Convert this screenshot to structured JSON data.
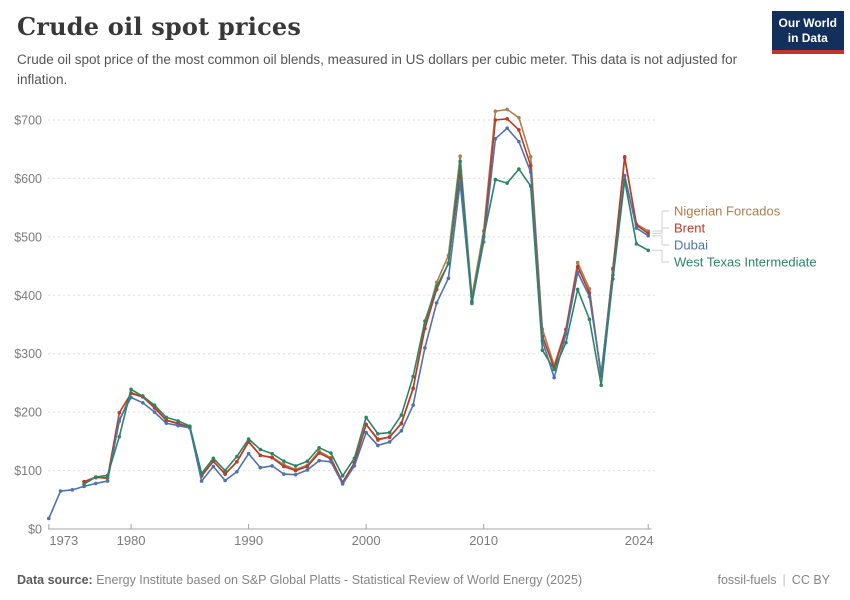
{
  "header": {
    "title": "Crude oil spot prices",
    "subtitle": "Crude oil spot price of the most common oil blends, measured in US dollars per cubic meter. This data is not adjusted for inflation.",
    "logo": {
      "line1": "Our World",
      "line2": "in Data"
    }
  },
  "chart_data": {
    "type": "line",
    "title": "Crude oil spot prices",
    "ylabel": "US dollars per cubic meter",
    "x_range": [
      1973,
      2024
    ],
    "ylim": [
      0,
      700
    ],
    "grid": "dashed-horizontal",
    "legend_position": "right-of-line-ends",
    "yticks": [
      0,
      100,
      200,
      300,
      400,
      500,
      600,
      700
    ],
    "ytick_labels": [
      "$0",
      "$100",
      "$200",
      "$300",
      "$400",
      "$500",
      "$600",
      "$700"
    ],
    "xticks": [
      1973,
      1980,
      1990,
      2000,
      2010,
      2024
    ],
    "series": [
      {
        "name": "Nigerian Forcados",
        "color": "#AC7E4D",
        "start_year": 1976,
        "values": [
          81,
          89,
          86,
          184,
          233,
          228,
          209,
          186,
          180,
          175,
          91,
          116,
          94,
          115,
          150,
          126,
          123,
          110,
          102,
          109,
          133,
          122,
          79,
          113,
          179,
          152,
          158,
          180,
          240,
          350,
          422,
          468,
          638,
          398,
          510,
          715,
          718,
          704,
          637,
          342,
          280,
          342,
          456,
          411,
          261,
          444,
          635,
          522,
          510
        ]
      },
      {
        "name": "Brent",
        "color": "#BC3A26",
        "start_year": 1976,
        "values": [
          81,
          88,
          88,
          199,
          232,
          226,
          207,
          186,
          181,
          173,
          91,
          116,
          94,
          115,
          149,
          126,
          122,
          107,
          100,
          107,
          130,
          120,
          80,
          113,
          179,
          154,
          157,
          181,
          241,
          343,
          410,
          455,
          612,
          388,
          500,
          700,
          702,
          683,
          622,
          330,
          275,
          341,
          449,
          404,
          263,
          446,
          637,
          520,
          506
        ]
      },
      {
        "name": "Dubai",
        "color": "#4E72B0",
        "start_year": 1973,
        "values": [
          18,
          65,
          67,
          73,
          78,
          82,
          187,
          225,
          216,
          200,
          181,
          177,
          173,
          82,
          107,
          83,
          98,
          129,
          105,
          108,
          94,
          93,
          101,
          117,
          115,
          77,
          108,
          165,
          143,
          149,
          168,
          212,
          310,
          387,
          429,
          593,
          386,
          491,
          668,
          686,
          663,
          611,
          322,
          259,
          334,
          439,
          398,
          266,
          435,
          605,
          515,
          502
        ]
      },
      {
        "name": "West Texas Intermediate",
        "color": "#2C8465",
        "start_year": 1976,
        "values": [
          77,
          89,
          92,
          158,
          239,
          227,
          212,
          191,
          185,
          176,
          95,
          121,
          100,
          124,
          154,
          136,
          129,
          116,
          108,
          116,
          139,
          130,
          91,
          121,
          191,
          163,
          165,
          195,
          261,
          356,
          415,
          454,
          629,
          390,
          500,
          598,
          592,
          616,
          587,
          306,
          273,
          319,
          410,
          359,
          246,
          428,
          597,
          488,
          477
        ]
      }
    ]
  },
  "colors": {
    "grid": "#DDDDDD",
    "axis": "#A5A5A5",
    "tick_text": "#7C7C7C",
    "leader_line": "#CFCFCF",
    "logo_bg": "#12305B",
    "logo_bar": "#C5342B"
  },
  "footer": {
    "datasource_label": "Data source:",
    "datasource_text": "Energy Institute based on S&P Global Platts - Statistical Review of World Energy (2025)",
    "topic": "fossil-fuels",
    "license": "CC BY"
  }
}
